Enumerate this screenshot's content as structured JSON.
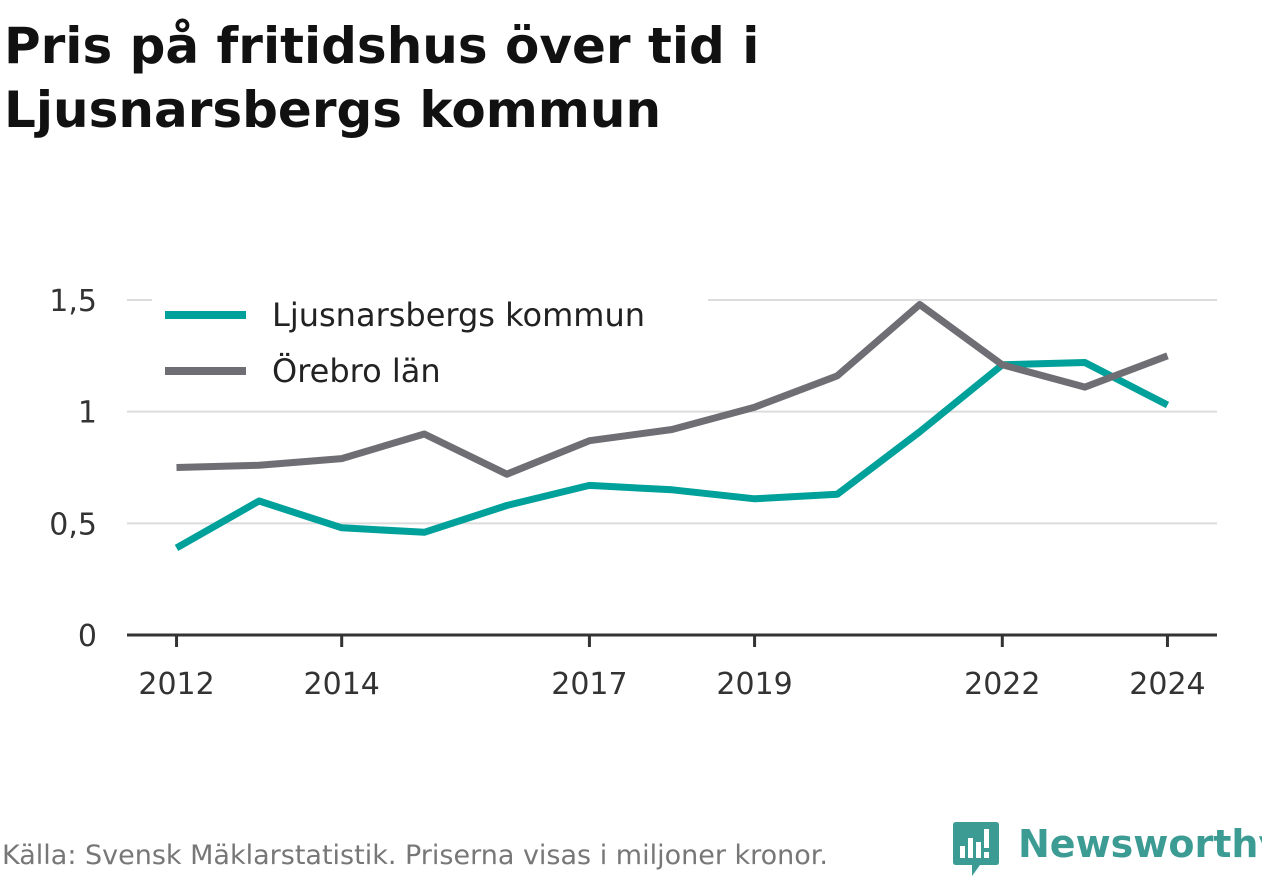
{
  "title": "Pris på fritidshus över tid i Ljusnarsbergs kommun",
  "source": "Källa: Svensk Mäklarstatistik. Priserna visas i miljoner kronor.",
  "brand": {
    "name": "Newsworthy",
    "icon": "bar-chart-speech-bubble-icon",
    "color": "#3c9c94"
  },
  "chart_data": {
    "type": "line",
    "x": [
      2012,
      2013,
      2014,
      2015,
      2016,
      2017,
      2018,
      2019,
      2020,
      2021,
      2022,
      2023,
      2024
    ],
    "x_tick_labels": [
      "2012",
      "2014",
      "2017",
      "2019",
      "2022",
      "2024"
    ],
    "x_tick_values": [
      2012,
      2014,
      2017,
      2019,
      2022,
      2024
    ],
    "y_tick_labels": [
      "0",
      "0,5",
      "1",
      "1,5"
    ],
    "y_tick_values": [
      0,
      0.5,
      1,
      1.5
    ],
    "ylim": [
      0,
      1.5
    ],
    "xlim": [
      2011.4,
      2024.6
    ],
    "grid": true,
    "legend_position": "top-left",
    "series": [
      {
        "name": "Ljusnarsbergs kommun",
        "color": "#00a19a",
        "values": [
          0.39,
          0.6,
          0.48,
          0.46,
          0.58,
          0.67,
          0.65,
          0.61,
          0.63,
          0.91,
          1.21,
          1.22,
          1.03
        ]
      },
      {
        "name": "Örebro län",
        "color": "#6e6e74",
        "values": [
          0.75,
          0.76,
          0.79,
          0.9,
          0.72,
          0.87,
          0.92,
          1.02,
          1.16,
          1.48,
          1.21,
          1.11,
          1.25
        ]
      }
    ]
  }
}
